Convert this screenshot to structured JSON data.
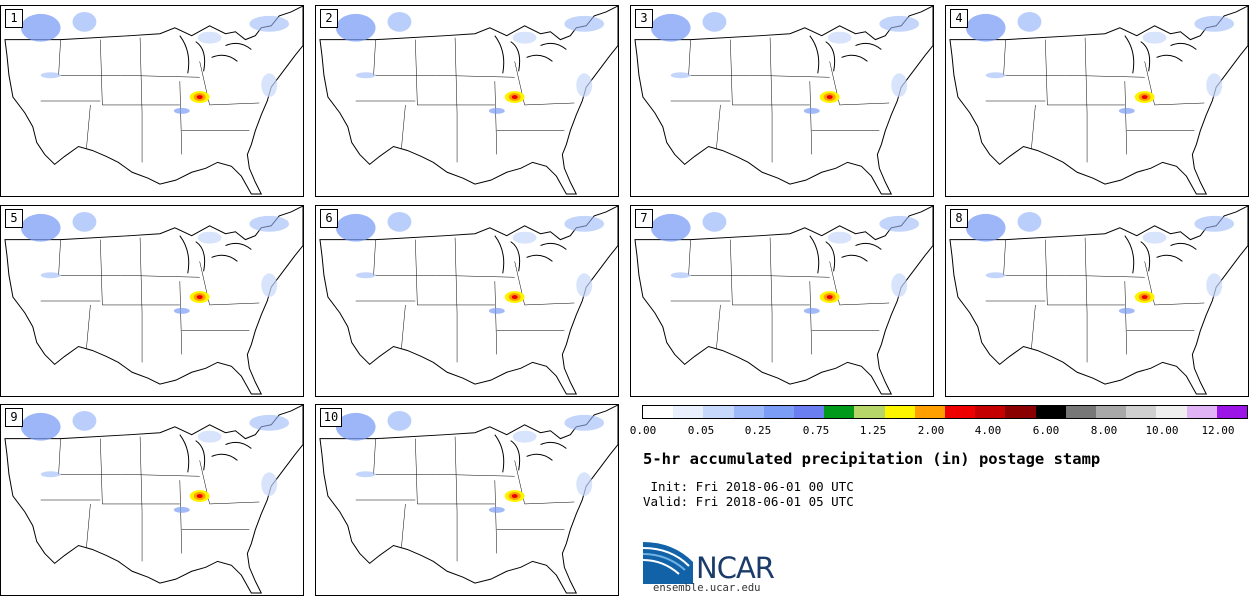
{
  "members": [
    {
      "label": "1"
    },
    {
      "label": "2"
    },
    {
      "label": "3"
    },
    {
      "label": "4"
    },
    {
      "label": "5"
    },
    {
      "label": "6"
    },
    {
      "label": "7"
    },
    {
      "label": "8"
    },
    {
      "label": "9"
    },
    {
      "label": "10"
    }
  ],
  "legend": {
    "colors": [
      "#ffffff",
      "#e8f0fe",
      "#c6d8fb",
      "#9db9f9",
      "#7c9df6",
      "#6a7ef2",
      "#009a1a",
      "#b6d66a",
      "#fdf500",
      "#ff9f00",
      "#ee0000",
      "#c40000",
      "#8a0000",
      "#000000",
      "#777777",
      "#a8a8a8",
      "#cfcfcf",
      "#eeeeee",
      "#dfb3f5",
      "#9a15e6"
    ],
    "ticks": [
      "0.00",
      "0.05",
      "0.25",
      "0.75",
      "1.25",
      "2.00",
      "4.00",
      "6.00",
      "8.00",
      "10.00",
      "12.00"
    ]
  },
  "title": "5-hr accumulated precipitation (in) postage stamp",
  "init_text": " Init: Fri 2018-06-01 00 UTC",
  "valid_text": "Valid: Fri 2018-06-01 05 UTC",
  "logo": {
    "text": "NCAR",
    "url": "ensemble.ucar.edu"
  }
}
